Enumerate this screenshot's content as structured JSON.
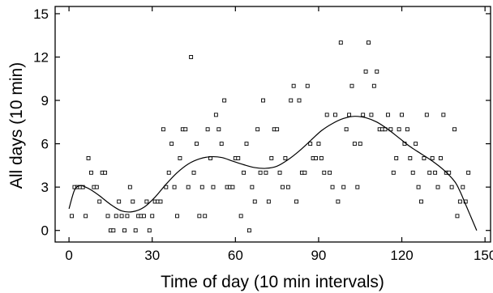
{
  "chart_data": {
    "type": "scatter",
    "xlabel": "Time of day (10 min intervals)",
    "ylabel": "All days (10 min)",
    "xlim": [
      -5,
      152
    ],
    "ylim": [
      -0.8,
      15.5
    ],
    "xticks": [
      0,
      30,
      60,
      90,
      120,
      150
    ],
    "yticks": [
      0,
      3,
      6,
      9,
      12,
      15
    ],
    "grid": false,
    "series": [
      {
        "kind": "points",
        "points": [
          [
            1,
            1
          ],
          [
            2,
            3
          ],
          [
            3,
            3
          ],
          [
            4,
            3
          ],
          [
            5,
            3
          ],
          [
            6,
            1
          ],
          [
            7,
            5
          ],
          [
            8,
            4
          ],
          [
            9,
            3
          ],
          [
            10,
            3
          ],
          [
            11,
            2
          ],
          [
            12,
            4
          ],
          [
            13,
            4
          ],
          [
            14,
            1
          ],
          [
            15,
            0
          ],
          [
            16,
            0
          ],
          [
            17,
            1
          ],
          [
            18,
            2
          ],
          [
            19,
            1
          ],
          [
            20,
            0
          ],
          [
            21,
            1
          ],
          [
            22,
            3
          ],
          [
            23,
            2
          ],
          [
            24,
            0
          ],
          [
            25,
            1
          ],
          [
            26,
            1
          ],
          [
            27,
            1
          ],
          [
            28,
            2
          ],
          [
            29,
            0
          ],
          [
            30,
            1
          ],
          [
            31,
            2
          ],
          [
            32,
            2
          ],
          [
            33,
            2
          ],
          [
            34,
            7
          ],
          [
            35,
            3
          ],
          [
            36,
            4
          ],
          [
            37,
            6
          ],
          [
            38,
            3
          ],
          [
            39,
            1
          ],
          [
            40,
            5
          ],
          [
            41,
            7
          ],
          [
            42,
            7
          ],
          [
            43,
            3
          ],
          [
            44,
            12
          ],
          [
            45,
            4
          ],
          [
            46,
            6
          ],
          [
            47,
            1
          ],
          [
            48,
            3
          ],
          [
            49,
            1
          ],
          [
            50,
            7
          ],
          [
            51,
            5
          ],
          [
            52,
            3
          ],
          [
            53,
            8
          ],
          [
            54,
            7
          ],
          [
            55,
            6
          ],
          [
            56,
            9
          ],
          [
            57,
            3
          ],
          [
            58,
            3
          ],
          [
            59,
            3
          ],
          [
            60,
            5
          ],
          [
            61,
            5
          ],
          [
            62,
            1
          ],
          [
            63,
            4
          ],
          [
            64,
            6
          ],
          [
            65,
            0
          ],
          [
            66,
            3
          ],
          [
            67,
            2
          ],
          [
            68,
            7
          ],
          [
            69,
            4
          ],
          [
            70,
            9
          ],
          [
            71,
            4
          ],
          [
            72,
            2
          ],
          [
            73,
            5
          ],
          [
            74,
            7
          ],
          [
            75,
            7
          ],
          [
            76,
            4
          ],
          [
            77,
            3
          ],
          [
            78,
            5
          ],
          [
            79,
            3
          ],
          [
            80,
            9
          ],
          [
            81,
            10
          ],
          [
            82,
            2
          ],
          [
            83,
            9
          ],
          [
            84,
            4
          ],
          [
            85,
            4
          ],
          [
            86,
            10
          ],
          [
            87,
            6
          ],
          [
            88,
            5
          ],
          [
            89,
            5
          ],
          [
            90,
            6
          ],
          [
            91,
            5
          ],
          [
            92,
            4
          ],
          [
            93,
            8
          ],
          [
            94,
            4
          ],
          [
            95,
            3
          ],
          [
            96,
            8
          ],
          [
            97,
            2
          ],
          [
            98,
            13
          ],
          [
            99,
            3
          ],
          [
            100,
            7
          ],
          [
            101,
            8
          ],
          [
            102,
            10
          ],
          [
            103,
            6
          ],
          [
            104,
            3
          ],
          [
            105,
            6
          ],
          [
            106,
            8
          ],
          [
            107,
            11
          ],
          [
            108,
            13
          ],
          [
            109,
            8
          ],
          [
            110,
            10
          ],
          [
            111,
            11
          ],
          [
            112,
            7
          ],
          [
            113,
            7
          ],
          [
            114,
            7
          ],
          [
            115,
            8
          ],
          [
            116,
            7
          ],
          [
            117,
            4
          ],
          [
            118,
            5
          ],
          [
            119,
            7
          ],
          [
            120,
            8
          ],
          [
            121,
            6
          ],
          [
            122,
            7
          ],
          [
            123,
            5
          ],
          [
            124,
            4
          ],
          [
            125,
            6
          ],
          [
            126,
            3
          ],
          [
            127,
            2
          ],
          [
            128,
            5
          ],
          [
            129,
            8
          ],
          [
            130,
            4
          ],
          [
            131,
            5
          ],
          [
            132,
            4
          ],
          [
            133,
            3
          ],
          [
            134,
            5
          ],
          [
            135,
            8
          ],
          [
            136,
            4
          ],
          [
            137,
            4
          ],
          [
            138,
            3
          ],
          [
            139,
            7
          ],
          [
            140,
            1
          ],
          [
            141,
            2
          ],
          [
            142,
            3
          ],
          [
            143,
            2
          ],
          [
            144,
            4
          ]
        ]
      },
      {
        "kind": "line",
        "points": [
          [
            0,
            1.5
          ],
          [
            2,
            2.8
          ],
          [
            4,
            3.1
          ],
          [
            6,
            3.0
          ],
          [
            8,
            2.8
          ],
          [
            11,
            2.4
          ],
          [
            15,
            1.8
          ],
          [
            19,
            1.35
          ],
          [
            23,
            1.3
          ],
          [
            27,
            1.6
          ],
          [
            31,
            2.3
          ],
          [
            35,
            3.2
          ],
          [
            39,
            4.0
          ],
          [
            43,
            4.6
          ],
          [
            47,
            4.95
          ],
          [
            51,
            5.1
          ],
          [
            55,
            5.05
          ],
          [
            59,
            4.8
          ],
          [
            63,
            4.55
          ],
          [
            67,
            4.35
          ],
          [
            71,
            4.3
          ],
          [
            75,
            4.45
          ],
          [
            79,
            4.9
          ],
          [
            83,
            5.5
          ],
          [
            87,
            6.2
          ],
          [
            91,
            6.9
          ],
          [
            95,
            7.4
          ],
          [
            99,
            7.75
          ],
          [
            103,
            7.9
          ],
          [
            107,
            7.8
          ],
          [
            111,
            7.5
          ],
          [
            115,
            7.0
          ],
          [
            119,
            6.4
          ],
          [
            123,
            5.8
          ],
          [
            127,
            5.3
          ],
          [
            131,
            4.8
          ],
          [
            135,
            4.2
          ],
          [
            139,
            3.4
          ],
          [
            141,
            2.7
          ],
          [
            143,
            1.8
          ],
          [
            145,
            0.9
          ],
          [
            147,
            0.0
          ]
        ]
      }
    ]
  }
}
